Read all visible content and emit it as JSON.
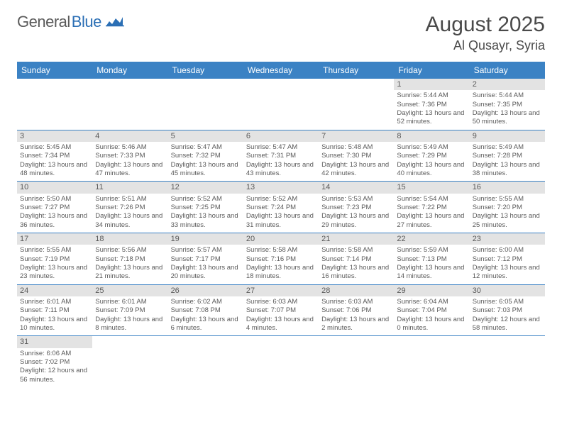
{
  "logo": {
    "text_gray": "General",
    "text_blue": "Blue"
  },
  "title": "August 2025",
  "location": "Al Qusayr, Syria",
  "weekdays": [
    "Sunday",
    "Monday",
    "Tuesday",
    "Wednesday",
    "Thursday",
    "Friday",
    "Saturday"
  ],
  "colors": {
    "header_bg": "#3b82c4",
    "header_text": "#ffffff",
    "daynum_bg": "#e3e3e3",
    "text": "#5a5a5a",
    "row_border": "#3b82c4"
  },
  "weeks": [
    [
      null,
      null,
      null,
      null,
      null,
      {
        "n": "1",
        "sr": "5:44 AM",
        "ss": "7:36 PM",
        "dl": "13 hours and 52 minutes."
      },
      {
        "n": "2",
        "sr": "5:44 AM",
        "ss": "7:35 PM",
        "dl": "13 hours and 50 minutes."
      }
    ],
    [
      {
        "n": "3",
        "sr": "5:45 AM",
        "ss": "7:34 PM",
        "dl": "13 hours and 48 minutes."
      },
      {
        "n": "4",
        "sr": "5:46 AM",
        "ss": "7:33 PM",
        "dl": "13 hours and 47 minutes."
      },
      {
        "n": "5",
        "sr": "5:47 AM",
        "ss": "7:32 PM",
        "dl": "13 hours and 45 minutes."
      },
      {
        "n": "6",
        "sr": "5:47 AM",
        "ss": "7:31 PM",
        "dl": "13 hours and 43 minutes."
      },
      {
        "n": "7",
        "sr": "5:48 AM",
        "ss": "7:30 PM",
        "dl": "13 hours and 42 minutes."
      },
      {
        "n": "8",
        "sr": "5:49 AM",
        "ss": "7:29 PM",
        "dl": "13 hours and 40 minutes."
      },
      {
        "n": "9",
        "sr": "5:49 AM",
        "ss": "7:28 PM",
        "dl": "13 hours and 38 minutes."
      }
    ],
    [
      {
        "n": "10",
        "sr": "5:50 AM",
        "ss": "7:27 PM",
        "dl": "13 hours and 36 minutes."
      },
      {
        "n": "11",
        "sr": "5:51 AM",
        "ss": "7:26 PM",
        "dl": "13 hours and 34 minutes."
      },
      {
        "n": "12",
        "sr": "5:52 AM",
        "ss": "7:25 PM",
        "dl": "13 hours and 33 minutes."
      },
      {
        "n": "13",
        "sr": "5:52 AM",
        "ss": "7:24 PM",
        "dl": "13 hours and 31 minutes."
      },
      {
        "n": "14",
        "sr": "5:53 AM",
        "ss": "7:23 PM",
        "dl": "13 hours and 29 minutes."
      },
      {
        "n": "15",
        "sr": "5:54 AM",
        "ss": "7:22 PM",
        "dl": "13 hours and 27 minutes."
      },
      {
        "n": "16",
        "sr": "5:55 AM",
        "ss": "7:20 PM",
        "dl": "13 hours and 25 minutes."
      }
    ],
    [
      {
        "n": "17",
        "sr": "5:55 AM",
        "ss": "7:19 PM",
        "dl": "13 hours and 23 minutes."
      },
      {
        "n": "18",
        "sr": "5:56 AM",
        "ss": "7:18 PM",
        "dl": "13 hours and 21 minutes."
      },
      {
        "n": "19",
        "sr": "5:57 AM",
        "ss": "7:17 PM",
        "dl": "13 hours and 20 minutes."
      },
      {
        "n": "20",
        "sr": "5:58 AM",
        "ss": "7:16 PM",
        "dl": "13 hours and 18 minutes."
      },
      {
        "n": "21",
        "sr": "5:58 AM",
        "ss": "7:14 PM",
        "dl": "13 hours and 16 minutes."
      },
      {
        "n": "22",
        "sr": "5:59 AM",
        "ss": "7:13 PM",
        "dl": "13 hours and 14 minutes."
      },
      {
        "n": "23",
        "sr": "6:00 AM",
        "ss": "7:12 PM",
        "dl": "13 hours and 12 minutes."
      }
    ],
    [
      {
        "n": "24",
        "sr": "6:01 AM",
        "ss": "7:11 PM",
        "dl": "13 hours and 10 minutes."
      },
      {
        "n": "25",
        "sr": "6:01 AM",
        "ss": "7:09 PM",
        "dl": "13 hours and 8 minutes."
      },
      {
        "n": "26",
        "sr": "6:02 AM",
        "ss": "7:08 PM",
        "dl": "13 hours and 6 minutes."
      },
      {
        "n": "27",
        "sr": "6:03 AM",
        "ss": "7:07 PM",
        "dl": "13 hours and 4 minutes."
      },
      {
        "n": "28",
        "sr": "6:03 AM",
        "ss": "7:06 PM",
        "dl": "13 hours and 2 minutes."
      },
      {
        "n": "29",
        "sr": "6:04 AM",
        "ss": "7:04 PM",
        "dl": "13 hours and 0 minutes."
      },
      {
        "n": "30",
        "sr": "6:05 AM",
        "ss": "7:03 PM",
        "dl": "12 hours and 58 minutes."
      }
    ],
    [
      {
        "n": "31",
        "sr": "6:06 AM",
        "ss": "7:02 PM",
        "dl": "12 hours and 56 minutes."
      },
      null,
      null,
      null,
      null,
      null,
      null
    ]
  ],
  "labels": {
    "sunrise": "Sunrise:",
    "sunset": "Sunset:",
    "daylight": "Daylight:"
  }
}
